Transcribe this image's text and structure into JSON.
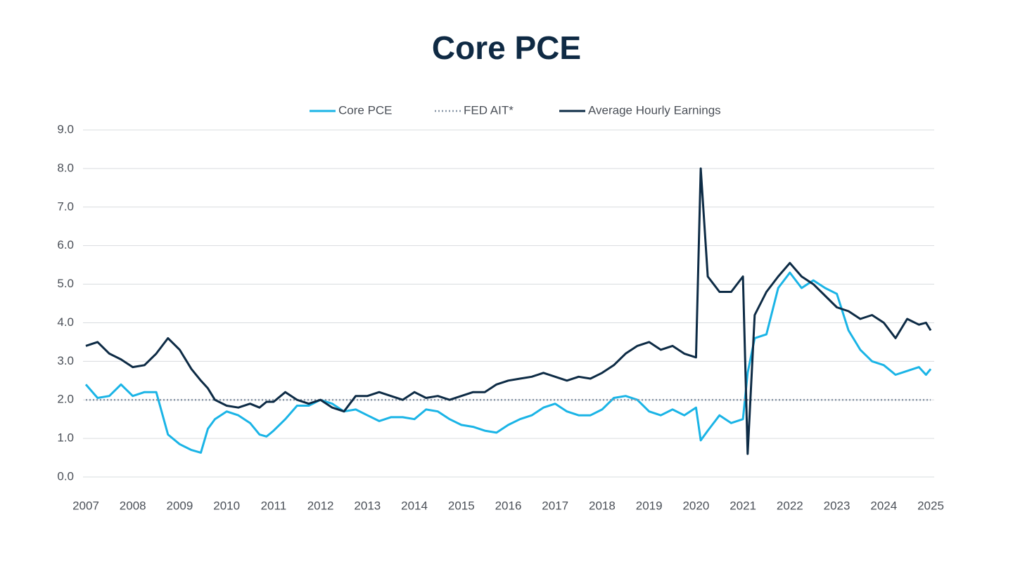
{
  "chart_data": {
    "type": "line",
    "title": "Core PCE",
    "x": [
      2007,
      2007.25,
      2007.5,
      2007.75,
      2008,
      2008.25,
      2008.5,
      2008.75,
      2009,
      2009.25,
      2009.45,
      2009.6,
      2009.75,
      2010,
      2010.25,
      2010.5,
      2010.7,
      2010.85,
      2011,
      2011.25,
      2011.5,
      2011.75,
      2012,
      2012.25,
      2012.5,
      2012.75,
      2013,
      2013.25,
      2013.5,
      2013.75,
      2014,
      2014.25,
      2014.5,
      2014.75,
      2015,
      2015.25,
      2015.5,
      2015.75,
      2016,
      2016.25,
      2016.5,
      2016.75,
      2017,
      2017.25,
      2017.5,
      2017.75,
      2018,
      2018.25,
      2018.5,
      2018.75,
      2019,
      2019.25,
      2019.5,
      2019.75,
      2020,
      2020.1,
      2020.25,
      2020.5,
      2020.75,
      2021,
      2021.1,
      2021.25,
      2021.5,
      2021.75,
      2022,
      2022.25,
      2022.5,
      2022.75,
      2023,
      2023.25,
      2023.5,
      2023.75,
      2024,
      2024.25,
      2024.5,
      2024.75,
      2024.9,
      2025
    ],
    "series": [
      {
        "name": "Core PCE",
        "color": "#1ab4e6",
        "style": "solid",
        "values": [
          2.4,
          2.05,
          2.1,
          2.4,
          2.1,
          2.2,
          2.2,
          1.1,
          0.85,
          0.7,
          0.63,
          1.25,
          1.5,
          1.7,
          1.6,
          1.4,
          1.1,
          1.05,
          1.2,
          1.5,
          1.85,
          1.85,
          2.0,
          1.9,
          1.7,
          1.75,
          1.6,
          1.45,
          1.55,
          1.55,
          1.5,
          1.75,
          1.7,
          1.5,
          1.35,
          1.3,
          1.2,
          1.15,
          1.35,
          1.5,
          1.6,
          1.8,
          1.9,
          1.7,
          1.6,
          1.6,
          1.75,
          2.05,
          2.1,
          2.0,
          1.7,
          1.6,
          1.75,
          1.6,
          1.8,
          0.95,
          1.2,
          1.6,
          1.4,
          1.5,
          2.7,
          3.6,
          3.7,
          4.9,
          5.3,
          4.9,
          5.1,
          4.9,
          4.75,
          3.8,
          3.3,
          3.0,
          2.9,
          2.65,
          2.75,
          2.85,
          2.65,
          2.8
        ]
      },
      {
        "name": "FED AIT*",
        "color": "#8896a6",
        "style": "dotted",
        "x": [
          2007,
          2025
        ],
        "values": [
          2.0,
          2.0
        ]
      },
      {
        "name": "Average Hourly Earnings",
        "color": "#0d2b45",
        "style": "solid",
        "values": [
          3.4,
          3.5,
          3.2,
          3.05,
          2.85,
          2.9,
          3.2,
          3.6,
          3.3,
          2.8,
          2.5,
          2.3,
          2.0,
          1.85,
          1.8,
          1.9,
          1.8,
          1.95,
          1.95,
          2.2,
          2.0,
          1.9,
          2.0,
          1.8,
          1.7,
          2.1,
          2.1,
          2.2,
          2.1,
          2.0,
          2.2,
          2.05,
          2.1,
          2.0,
          2.1,
          2.2,
          2.2,
          2.4,
          2.5,
          2.55,
          2.6,
          2.7,
          2.6,
          2.5,
          2.6,
          2.55,
          2.7,
          2.9,
          3.2,
          3.4,
          3.5,
          3.3,
          3.4,
          3.2,
          3.1,
          8.0,
          5.2,
          4.8,
          4.8,
          5.2,
          0.6,
          4.2,
          4.8,
          5.2,
          5.55,
          5.2,
          5.0,
          4.7,
          4.4,
          4.3,
          4.1,
          4.2,
          4.0,
          3.6,
          4.1,
          3.95,
          4.0,
          3.8
        ]
      }
    ],
    "xlim": [
      2007,
      2025
    ],
    "xticks": [
      2007,
      2008,
      2009,
      2010,
      2011,
      2012,
      2013,
      2014,
      2015,
      2016,
      2017,
      2018,
      2019,
      2020,
      2021,
      2022,
      2023,
      2024,
      2025
    ],
    "ylim": [
      0,
      9
    ],
    "yticks": [
      {
        "value": 0,
        "label": "0.0"
      },
      {
        "value": 1,
        "label": "1.0"
      },
      {
        "value": 2,
        "label": "2.0"
      },
      {
        "value": 3,
        "label": "3.0"
      },
      {
        "value": 4,
        "label": "4.0"
      },
      {
        "value": 5,
        "label": "5.0"
      },
      {
        "value": 6,
        "label": "6.0"
      },
      {
        "value": 7,
        "label": "7.0"
      },
      {
        "value": 8,
        "label": "8.0"
      },
      {
        "value": 9,
        "label": "9.0"
      }
    ],
    "grid": true,
    "legend": "top"
  }
}
